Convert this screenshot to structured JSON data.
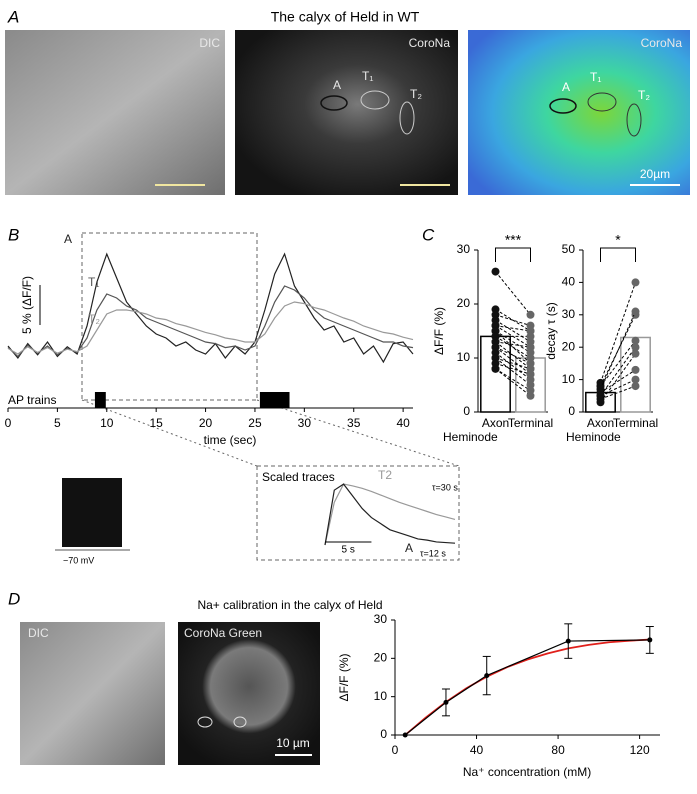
{
  "figure": {
    "panel_a": "A",
    "panel_b": "B",
    "panel_c": "C",
    "panel_d": "D",
    "title_a": "The calyx of Held in WT",
    "images_a": [
      "DIC",
      "CoroNa",
      "CoroNa"
    ],
    "roi_labels_mid": [
      "A",
      "T₁",
      "T₂"
    ],
    "roi_labels_right": [
      "A",
      "T₁",
      "T₂"
    ],
    "scale_a": "20µm",
    "ephys_label": "−70 mV",
    "images_d": [
      "DIC",
      "CoroNa Green"
    ],
    "scale_d": "10 µm"
  },
  "chart_data": [
    {
      "type": "line",
      "xlabel": "time (sec)",
      "xlim": [
        0,
        41
      ],
      "xticks": [
        0,
        5,
        10,
        15,
        20,
        25,
        30,
        35,
        40
      ],
      "ylim": [
        -5,
        13
      ],
      "scale_bar": {
        "value": 5,
        "label": "5 % (ΔF/F)"
      },
      "stim_label": "AP trains",
      "stimuli": [
        [
          8.8,
          9.9
        ],
        [
          25.5,
          28.5
        ]
      ],
      "x": [
        0,
        1,
        2,
        3,
        4,
        5,
        6,
        7,
        8,
        9,
        10,
        11,
        12,
        13,
        14,
        15,
        16,
        17,
        18,
        19,
        20,
        21,
        22,
        23,
        24,
        25,
        26,
        27,
        28,
        29,
        30,
        31,
        32,
        33,
        34,
        35,
        36,
        37,
        38,
        39,
        40,
        41
      ],
      "series": [
        {
          "name": "A",
          "color": "#222222",
          "values": [
            0.5,
            -1,
            0.8,
            -0.6,
            1,
            -0.8,
            0.4,
            -0.5,
            3,
            8.5,
            12,
            9,
            6,
            4.5,
            3,
            2,
            1.5,
            0.5,
            1,
            0,
            -0.5,
            0.8,
            -1,
            0.5,
            -0.5,
            1,
            5,
            9.5,
            12,
            8,
            6,
            4,
            2.5,
            3,
            1,
            1.5,
            -0.5,
            0.5,
            -1.5,
            0.8,
            1,
            -0.5
          ]
        },
        {
          "name": "T₁",
          "color": "#555555",
          "values": [
            0.3,
            -0.8,
            0.6,
            -0.4,
            0.5,
            -0.6,
            0.2,
            -0.3,
            1.5,
            5,
            7,
            6.5,
            5.5,
            5,
            4,
            3.5,
            3,
            2.5,
            2,
            1.5,
            1,
            0.8,
            0.3,
            0.5,
            0,
            0.5,
            3,
            6,
            8,
            7.5,
            6.5,
            5,
            4,
            3.5,
            3,
            2.5,
            2,
            1.5,
            1,
            1,
            0.5,
            0.3
          ]
        },
        {
          "name": "T₂",
          "color": "#999999",
          "values": [
            0.2,
            -0.5,
            0.4,
            -0.3,
            0.3,
            -0.4,
            0.1,
            -0.2,
            0.5,
            2.5,
            4.5,
            5,
            5,
            4.8,
            4.5,
            4,
            3.8,
            3.3,
            3,
            2.6,
            2.2,
            1.9,
            1.5,
            1.3,
            1,
            1,
            2,
            4,
            5.5,
            6,
            5.8,
            5.3,
            5,
            4.5,
            4,
            3.6,
            3,
            2.6,
            2.2,
            2,
            1.6,
            1.3
          ]
        }
      ]
    },
    {
      "type": "line",
      "title": "Scaled traces",
      "xlim": [
        0,
        14
      ],
      "ylim": [
        0,
        1.1
      ],
      "scale_bar": {
        "value": 5,
        "label": "5 s"
      },
      "annotations": [
        "τ=30 s",
        "τ=12 s"
      ],
      "x": [
        0,
        1,
        2,
        3,
        4,
        5,
        6,
        7,
        8,
        9,
        10,
        11,
        12,
        13,
        14
      ],
      "series": [
        {
          "name": "T2",
          "color": "#999999",
          "values": [
            0,
            0.7,
            1,
            0.97,
            0.93,
            0.88,
            0.82,
            0.76,
            0.7,
            0.65,
            0.6,
            0.55,
            0.5,
            0.46,
            0.42
          ]
        },
        {
          "name": "A",
          "color": "#222222",
          "values": [
            0,
            0.9,
            1,
            0.8,
            0.6,
            0.45,
            0.35,
            0.25,
            0.2,
            0.15,
            0.1,
            0.08,
            0.05,
            0.04,
            0.03
          ]
        }
      ]
    },
    {
      "type": "bar",
      "ylabel": "ΔF/F (%)",
      "xlabel": "Heminode",
      "significance": "***",
      "categories": [
        "Axon",
        "Terminal"
      ],
      "values": [
        14,
        10
      ],
      "colors": [
        "#000000",
        "#999999"
      ],
      "ylim": [
        0,
        30
      ],
      "yticks": [
        0,
        10,
        20,
        30
      ],
      "pairs": [
        [
          26,
          18
        ],
        [
          19,
          15
        ],
        [
          18,
          16
        ],
        [
          17,
          13
        ],
        [
          16,
          15
        ],
        [
          16,
          12
        ],
        [
          15,
          11
        ],
        [
          15,
          9
        ],
        [
          14,
          14
        ],
        [
          14,
          10
        ],
        [
          13,
          8
        ],
        [
          13,
          12
        ],
        [
          12,
          9
        ],
        [
          12,
          7
        ],
        [
          11,
          6
        ],
        [
          10,
          8
        ],
        [
          10,
          5
        ],
        [
          9,
          7
        ],
        [
          8,
          4
        ],
        [
          8,
          3
        ]
      ]
    },
    {
      "type": "bar",
      "ylabel": "decay τ (s)",
      "xlabel": "Heminode",
      "significance": "*",
      "categories": [
        "Axon",
        "Terminal"
      ],
      "values": [
        6,
        23
      ],
      "colors": [
        "#000000",
        "#999999"
      ],
      "ylim": [
        0,
        50
      ],
      "yticks": [
        0,
        10,
        20,
        30,
        40,
        50
      ],
      "pairs": [
        [
          9,
          40
        ],
        [
          8,
          30
        ],
        [
          8,
          22
        ],
        [
          7,
          31
        ],
        [
          6,
          13
        ],
        [
          5,
          10
        ],
        [
          5,
          20
        ],
        [
          4,
          8
        ],
        [
          3,
          18
        ]
      ]
    },
    {
      "type": "line",
      "title": "Na+ calibration in the calyx of Held",
      "xlabel": "Na⁺ concentration (mM)",
      "ylabel": "ΔF/F (%)",
      "xlim": [
        0,
        130
      ],
      "xticks": [
        0,
        40,
        80,
        120
      ],
      "ylim": [
        0,
        30
      ],
      "yticks": [
        0,
        10,
        20,
        30
      ],
      "x": [
        5,
        25,
        45,
        85,
        125
      ],
      "values": [
        0,
        8.5,
        15.5,
        24.5,
        24.8
      ],
      "errors": [
        0,
        3.5,
        5,
        4.5,
        3.5
      ],
      "color": "#000000",
      "fit": {
        "color": "#e0201b",
        "x": [
          5,
          15,
          25,
          35,
          45,
          55,
          65,
          75,
          85,
          95,
          105,
          115,
          125
        ],
        "values": [
          0,
          4.5,
          8.6,
          12.2,
          15.2,
          17.7,
          19.7,
          21.3,
          22.6,
          23.5,
          24.2,
          24.6,
          24.9
        ]
      }
    }
  ]
}
